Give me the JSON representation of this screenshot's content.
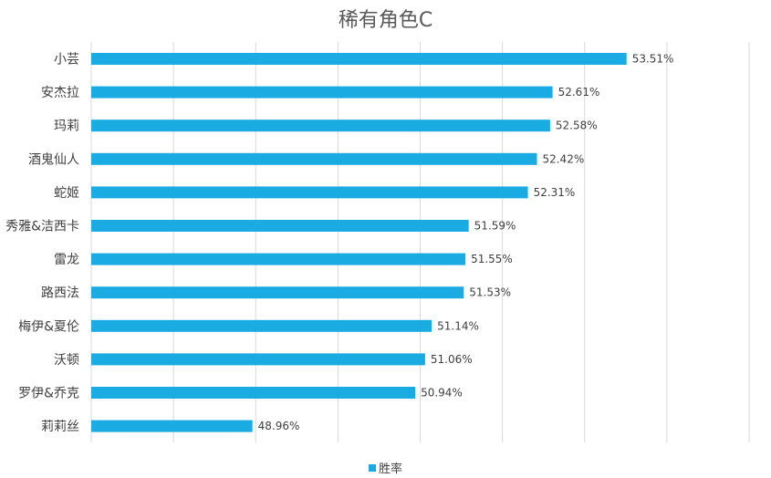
{
  "chart_data": {
    "type": "bar",
    "orientation": "horizontal",
    "title": "稀有角色C",
    "categories": [
      "小芸",
      "安杰拉",
      "玛莉",
      "酒鬼仙人",
      "蛇姬",
      "秀雅&洁西卡",
      "雷龙",
      "路西法",
      "梅伊&夏伦",
      "沃顿",
      "罗伊&乔克",
      "莉莉丝"
    ],
    "series": [
      {
        "name": "胜率",
        "values": [
          53.51,
          52.61,
          52.58,
          52.42,
          52.31,
          51.59,
          51.55,
          51.53,
          51.14,
          51.06,
          50.94,
          48.96
        ],
        "labels": [
          "53.51%",
          "52.61%",
          "52.58%",
          "52.42%",
          "52.31%",
          "51.59%",
          "51.55%",
          "51.53%",
          "51.14%",
          "51.06%",
          "50.94%",
          "48.96%"
        ]
      }
    ],
    "xlim": [
      47.0,
      55.0
    ],
    "grid": "vertical",
    "legend": "bottom",
    "colors": {
      "bar": "#1AABE3",
      "grid": "#D9D9D9",
      "text": "#404040",
      "title": "#595959"
    }
  }
}
